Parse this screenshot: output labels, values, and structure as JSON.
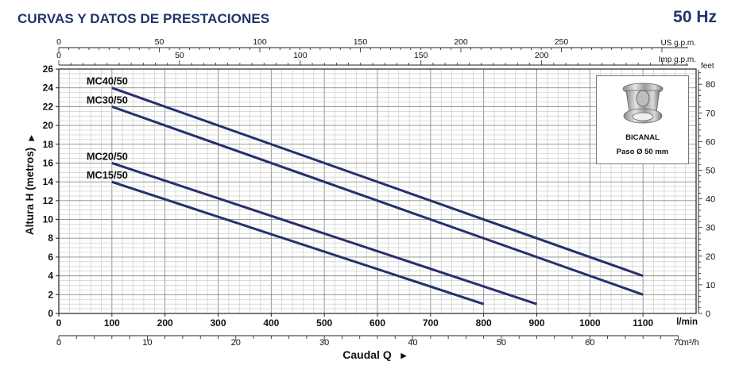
{
  "header": {
    "title": "CURVAS Y DATOS DE PRESTACIONES",
    "frequency": "50 Hz"
  },
  "inset": {
    "impeller_icon": "impeller-icon",
    "type_label": "BICANAL",
    "passage_label": "Paso Ø 50 mm"
  },
  "chart_data": {
    "type": "line",
    "xlabel": "Caudal Q",
    "ylabel": "Altura H (metros)",
    "x_unit": "l/min",
    "y_unit_right": "feet",
    "xlim": [
      0,
      1200
    ],
    "ylim": [
      0,
      26
    ],
    "grid": true,
    "x_ticks": [
      0,
      100,
      200,
      300,
      400,
      500,
      600,
      700,
      800,
      900,
      1000,
      1100
    ],
    "y_ticks": [
      0,
      2,
      4,
      6,
      8,
      10,
      12,
      14,
      16,
      18,
      20,
      22,
      24,
      26
    ],
    "feet_ticks": [
      0,
      10,
      20,
      30,
      40,
      50,
      60,
      70,
      80
    ],
    "us_gpm_label": "US g.p.m.",
    "us_gpm_ticks": [
      0,
      50,
      100,
      150,
      200,
      250
    ],
    "imp_gpm_label": "Imp g.p.m.",
    "imp_gpm_ticks": [
      0,
      50,
      100,
      150,
      200
    ],
    "m3h_unit": "m³/h",
    "m3h_ticks": [
      0,
      10,
      20,
      30,
      40,
      50,
      60,
      70
    ],
    "series": [
      {
        "name": "MC40/50",
        "x": [
          100,
          1100
        ],
        "y": [
          24,
          4
        ]
      },
      {
        "name": "MC30/50",
        "x": [
          100,
          1100
        ],
        "y": [
          22,
          2
        ]
      },
      {
        "name": "MC20/50",
        "x": [
          100,
          900
        ],
        "y": [
          16,
          1
        ]
      },
      {
        "name": "MC15/50",
        "x": [
          100,
          800
        ],
        "y": [
          14,
          1
        ]
      }
    ],
    "line_color": "#25306f"
  }
}
